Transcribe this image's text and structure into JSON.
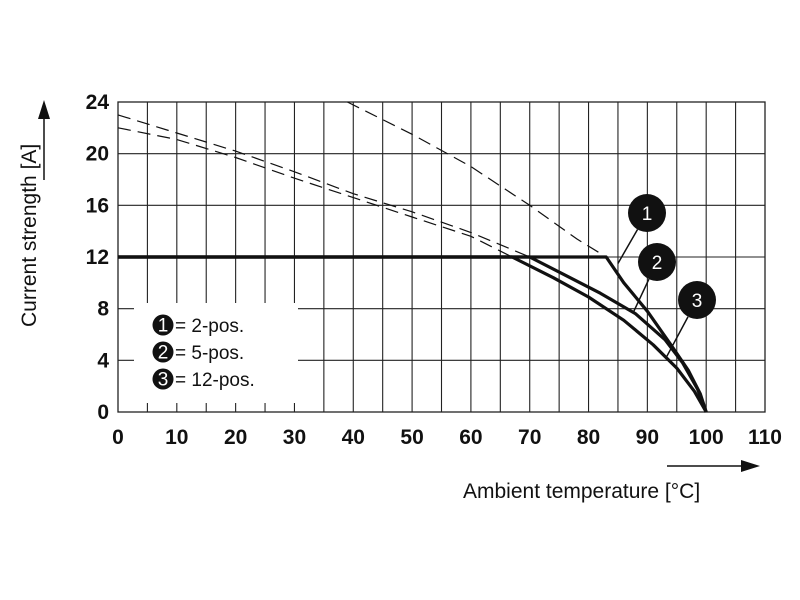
{
  "chart_data": {
    "type": "line",
    "xlabel": "Ambient temperature [°C]",
    "ylabel": "Current strength [A]",
    "xlim": [
      0,
      110
    ],
    "ylim": [
      0,
      24
    ],
    "x_ticks": [
      0,
      10,
      20,
      30,
      40,
      50,
      60,
      70,
      80,
      90,
      100,
      110
    ],
    "y_ticks": [
      0,
      4,
      8,
      12,
      16,
      20,
      24
    ],
    "grid": true,
    "series": [
      {
        "name": "2-pos.",
        "marker": "1",
        "solid": [
          [
            0,
            12
          ],
          [
            83,
            12
          ],
          [
            86,
            10
          ],
          [
            90,
            7.8
          ],
          [
            94,
            5.2
          ],
          [
            97,
            3.2
          ],
          [
            99,
            1.4
          ],
          [
            100,
            0
          ]
        ],
        "dashed": [
          [
            39,
            24
          ],
          [
            50,
            21.5
          ],
          [
            60,
            19
          ],
          [
            70,
            16
          ],
          [
            78,
            13.4
          ],
          [
            83,
            12
          ]
        ]
      },
      {
        "name": "5-pos.",
        "marker": "2",
        "solid": [
          [
            0,
            12
          ],
          [
            70,
            12
          ],
          [
            76,
            10.6
          ],
          [
            82,
            9.2
          ],
          [
            88,
            7.6
          ],
          [
            93,
            5.6
          ],
          [
            96,
            3.8
          ],
          [
            98.5,
            1.8
          ],
          [
            100,
            0
          ]
        ],
        "dashed": [
          [
            0,
            23
          ],
          [
            10,
            21.6
          ],
          [
            20,
            20.2
          ],
          [
            30,
            18.6
          ],
          [
            40,
            16.9
          ],
          [
            50,
            15.5
          ],
          [
            60,
            13.9
          ],
          [
            70,
            12
          ]
        ]
      },
      {
        "name": "12-pos.",
        "marker": "3",
        "solid": [
          [
            0,
            12
          ],
          [
            67,
            12
          ],
          [
            74,
            10.4
          ],
          [
            80,
            8.9
          ],
          [
            86,
            7.1
          ],
          [
            91,
            5.2
          ],
          [
            95,
            3.4
          ],
          [
            98,
            1.6
          ],
          [
            100,
            0
          ]
        ],
        "dashed": [
          [
            0,
            22
          ],
          [
            10,
            21.1
          ],
          [
            20,
            19.7
          ],
          [
            30,
            18.1
          ],
          [
            40,
            16.6
          ],
          [
            50,
            15.1
          ],
          [
            60,
            13.6
          ],
          [
            67,
            12
          ]
        ]
      }
    ],
    "legend": {
      "placement": "lower-left",
      "entries": [
        {
          "marker": "1",
          "label": "= 2-pos."
        },
        {
          "marker": "2",
          "label": "= 5-pos."
        },
        {
          "marker": "3",
          "label": "= 12-pos."
        }
      ]
    },
    "callouts": [
      {
        "marker": "1",
        "x": 85,
        "y": 11.5
      },
      {
        "marker": "2",
        "x": 87.7,
        "y": 7.8
      },
      {
        "marker": "3",
        "x": 93.3,
        "y": 4.3
      }
    ]
  }
}
